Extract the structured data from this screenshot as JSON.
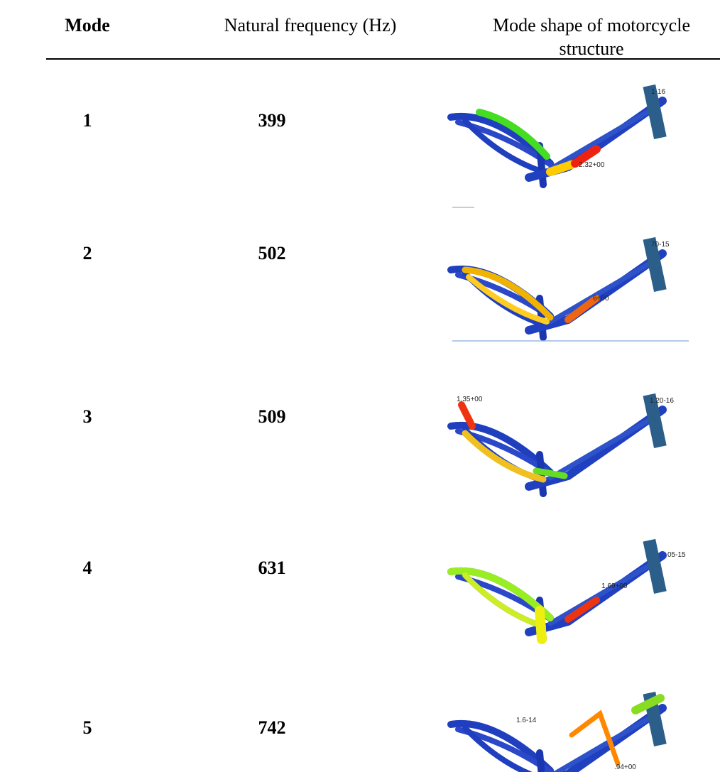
{
  "table": {
    "header": [
      "Mode",
      "Natural frequency (Hz)",
      "Mode shape of motorcycle structure"
    ],
    "rows": [
      {
        "mode": "1",
        "frequency": "399",
        "annotations": [
          "1-16",
          "2.32+00"
        ]
      },
      {
        "mode": "2",
        "frequency": "502",
        "annotations": [
          "70-15",
          "6+00"
        ]
      },
      {
        "mode": "3",
        "frequency": "509",
        "annotations": [
          "1.35+00",
          "1.20-16"
        ]
      },
      {
        "mode": "4",
        "frequency": "631",
        "annotations": [
          "05-15",
          "1.69+00"
        ]
      },
      {
        "mode": "5",
        "frequency": "742",
        "annotations": [
          "1.6-14",
          ".94+00"
        ]
      }
    ]
  }
}
